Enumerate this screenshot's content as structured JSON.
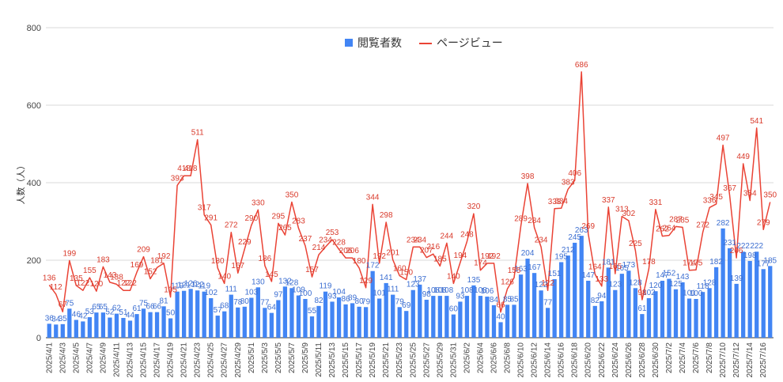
{
  "chart_data": {
    "type": "bar+line",
    "title": "",
    "ylabel": "人数（人）",
    "ylim": [
      0,
      800
    ],
    "yticks": [
      0,
      200,
      400,
      600,
      800
    ],
    "grid": true,
    "legend_position": "top-center",
    "series": [
      {
        "name": "閲覧者数",
        "type": "bar",
        "color": "#4285f4",
        "values": [
          36,
          34,
          35,
          75,
          46,
          42,
          53,
          65,
          65,
          52,
          62,
          51,
          44,
          61,
          75,
          66,
          66,
          81,
          50,
          119,
          121,
          126,
          122,
          119,
          102,
          57,
          68,
          111,
          78,
          80,
          103,
          130,
          77,
          64,
          97,
          132,
          128,
          109,
          100,
          55,
          82,
          119,
          93,
          104,
          86,
          89,
          80,
          79,
          172,
          101,
          141,
          111,
          79,
          69,
          123,
          137,
          98,
          108,
          108,
          108,
          60,
          93,
          108,
          135,
          108,
          106,
          84,
          40,
          85,
          85,
          163,
          204,
          167,
          122,
          77,
          151,
          195,
          212,
          245,
          263,
          147,
          82,
          94,
          181,
          123,
          165,
          173,
          128,
          61,
          102,
          120,
          147,
          152,
          125,
          143,
          101,
          100,
          118,
          128,
          182,
          282,
          231,
          139,
          222,
          198,
          222,
          177,
          185
        ]
      },
      {
        "name": "ページビュー",
        "type": "line",
        "color": "#ea4335",
        "values": [
          136,
          112,
          67,
          199,
          135,
          122,
          155,
          120,
          183,
          143,
          138,
          122,
          122,
          169,
          209,
          152,
          181,
          192,
          105,
          393,
          418,
          418,
          511,
          317,
          291,
          180,
          140,
          272,
          167,
          229,
          290,
          330,
          186,
          145,
          295,
          265,
          350,
          283,
          237,
          157,
          214,
          234,
          253,
          228,
          206,
          206,
          180,
          129,
          344,
          192,
          298,
          201,
          160,
          150,
          234,
          234,
          207,
          216,
          185,
          244,
          140,
          194,
          248,
          320,
          174,
          192,
          192,
          66,
          126,
          155,
          289,
          398,
          284,
          234,
          122,
          333,
          334,
          383,
          406,
          686,
          269,
          164,
          133,
          337,
          165,
          313,
          302,
          225,
          98,
          178,
          331,
          262,
          264,
          287,
          285,
          174,
          175,
          272,
          336,
          345,
          497,
          367,
          206,
          449,
          354,
          541,
          279,
          350
        ]
      }
    ],
    "categories": [
      "2025/4/1",
      "2025/4/2",
      "2025/4/3",
      "2025/4/4",
      "2025/4/5",
      "2025/4/6",
      "2025/4/7",
      "2025/4/8",
      "2025/4/9",
      "2025/4/10",
      "2025/4/11",
      "2025/4/12",
      "2025/4/13",
      "2025/4/14",
      "2025/4/15",
      "2025/4/16",
      "2025/4/17",
      "2025/4/18",
      "2025/4/19",
      "2025/4/20",
      "2025/4/21",
      "2025/4/22",
      "2025/4/23",
      "2025/4/24",
      "2025/4/25",
      "2025/4/26",
      "2025/4/27",
      "2025/4/28",
      "2025/4/29",
      "2025/4/30",
      "2025/5/1",
      "2025/5/2",
      "2025/5/3",
      "2025/5/4",
      "2025/5/5",
      "2025/5/6",
      "2025/5/7",
      "2025/5/8",
      "2025/5/9",
      "2025/5/10",
      "2025/5/11",
      "2025/5/12",
      "2025/5/13",
      "2025/5/14",
      "2025/5/15",
      "2025/5/16",
      "2025/5/17",
      "2025/5/18",
      "2025/5/19",
      "2025/5/20",
      "2025/5/21",
      "2025/5/22",
      "2025/5/23",
      "2025/5/24",
      "2025/5/25",
      "2025/5/26",
      "2025/5/27",
      "2025/5/28",
      "2025/5/29",
      "2025/5/30",
      "2025/5/31",
      "2025/6/1",
      "2025/6/2",
      "2025/6/3",
      "2025/6/4",
      "2025/6/5",
      "2025/6/6",
      "2025/6/7",
      "2025/6/8",
      "2025/6/9",
      "2025/6/10",
      "2025/6/11",
      "2025/6/12",
      "2025/6/13",
      "2025/6/14",
      "2025/6/15",
      "2025/6/16",
      "2025/6/17",
      "2025/6/18",
      "2025/6/19",
      "2025/6/20",
      "2025/6/21",
      "2025/6/22",
      "2025/6/23",
      "2025/6/24",
      "2025/6/25",
      "2025/6/26",
      "2025/6/27",
      "2025/6/28",
      "2025/6/29",
      "2025/6/30",
      "2025/7/1",
      "2025/7/2",
      "2025/7/3",
      "2025/7/4",
      "2025/7/5",
      "2025/7/6",
      "2025/7/7",
      "2025/7/8",
      "2025/7/9",
      "2025/7/10",
      "2025/7/11",
      "2025/7/12",
      "2025/7/13",
      "2025/7/14",
      "2025/7/15",
      "2025/7/16",
      "2025/7/17"
    ],
    "visible_tick_labels": [
      "2025/4/1",
      "2025/4/3",
      "2025/4/5",
      "2025/4/7",
      "2025/4/9",
      "2025/4/11",
      "2025/4/13",
      "2025/4/15",
      "2025/4/17",
      "2025/4/19",
      "2025/4/21",
      "2025/4/23",
      "2025/4/25",
      "2025/4/27",
      "2025/4/29",
      "2025/5/1",
      "2025/5/3",
      "2025/5/5",
      "2025/5/7",
      "2025/5/9",
      "2025/5/11",
      "2025/5/13",
      "2025/5/15",
      "2025/5/17",
      "2025/5/19",
      "2025/5/21",
      "2025/5/23",
      "2025/5/25",
      "2025/5/27",
      "2025/5/29",
      "2025/5/31",
      "2025/6/2",
      "2025/6/4",
      "2025/6/6",
      "2025/6/8",
      "2025/6/10",
      "2025/6/12",
      "2025/6/14",
      "2025/6/16",
      "2025/6/18",
      "2025/6/20",
      "2025/6/22",
      "2025/6/24",
      "2025/6/26",
      "2025/6/28",
      "2025/6/30",
      "2025/7/2",
      "2025/7/4",
      "2025/7/6",
      "2025/7/8",
      "2025/7/10",
      "2025/7/12",
      "2025/7/14",
      "2025/7/16"
    ]
  }
}
